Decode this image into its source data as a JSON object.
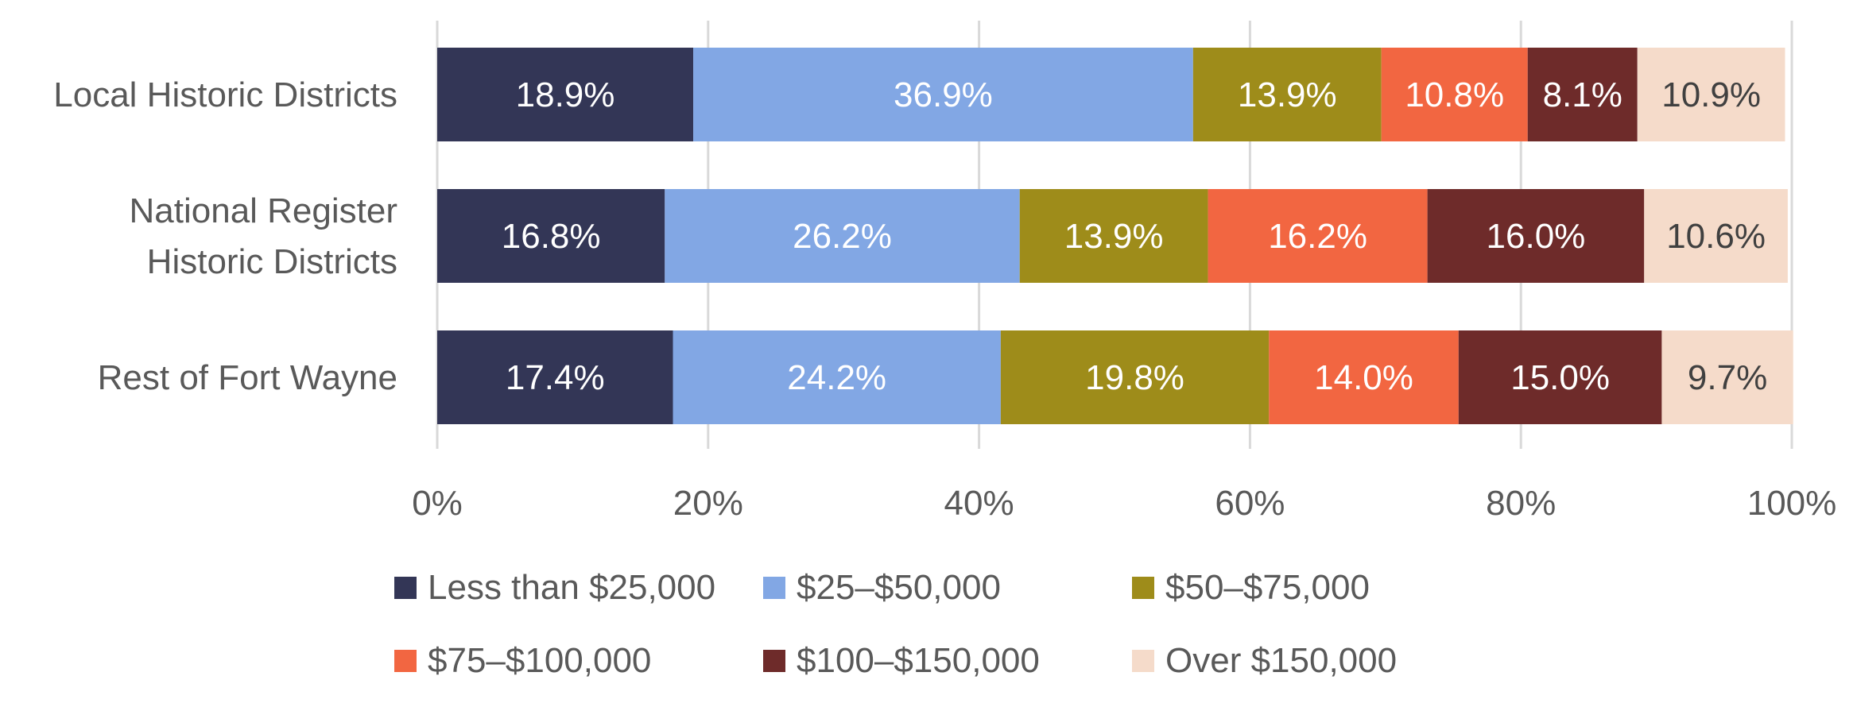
{
  "chart_data": {
    "type": "bar",
    "orientation": "horizontal",
    "stacked": "percent",
    "categories": [
      [
        "Local Historic Districts"
      ],
      [
        "National Register",
        "Historic Districts"
      ],
      [
        "Rest of Fort Wayne"
      ]
    ],
    "series": [
      {
        "name": "Less than $25,000",
        "color": "#333656",
        "label_color": "#ffffff",
        "values": [
          18.9,
          16.8,
          17.4
        ]
      },
      {
        "name": "$25–$50,000",
        "color": "#82a7e4",
        "label_color": "#ffffff",
        "values": [
          36.9,
          26.2,
          24.2
        ]
      },
      {
        "name": "$50–$75,000",
        "color": "#9e8c1a",
        "label_color": "#ffffff",
        "values": [
          13.9,
          13.9,
          19.8
        ]
      },
      {
        "name": "$75–$100,000",
        "color": "#f26641",
        "label_color": "#ffffff",
        "values": [
          10.8,
          16.2,
          14.0
        ]
      },
      {
        "name": "$100–$150,000",
        "color": "#6e2b2a",
        "label_color": "#ffffff",
        "values": [
          8.1,
          16.0,
          15.0
        ]
      },
      {
        "name": "Over $150,000",
        "color": "#f5dbca",
        "label_color": "#404040",
        "values": [
          10.9,
          10.6,
          9.7
        ]
      }
    ],
    "x_ticks": [
      "0%",
      "20%",
      "40%",
      "60%",
      "80%",
      "100%"
    ],
    "xlim": [
      0,
      100
    ],
    "value_format": "%",
    "grid": true,
    "legend_position": "bottom"
  }
}
